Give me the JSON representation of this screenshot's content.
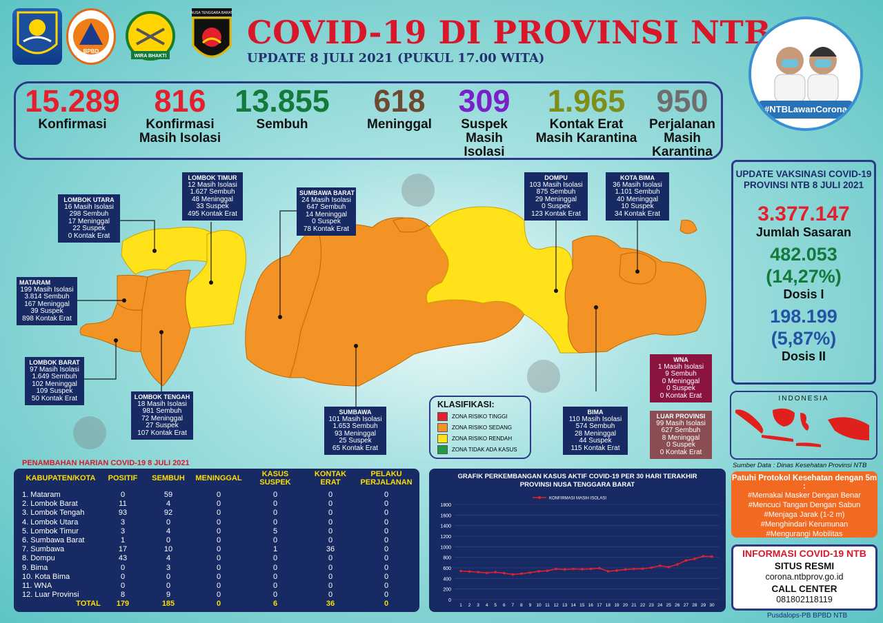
{
  "header": {
    "title": "COVID-19 DI PROVINSI NTB",
    "subtitle": "UPDATE 8 JULI 2021 (PUKUL 17.00 WITA)",
    "logos": [
      {
        "name": "ntb-province-emblem",
        "text": ""
      },
      {
        "name": "bpbd-logo",
        "text": "BPBD"
      },
      {
        "name": "korem-wira-bhakti-logo",
        "text": "WIRA BHAKTI"
      },
      {
        "name": "polda-ntb-logo",
        "text": "NUSA TENGGARA BARAT"
      }
    ]
  },
  "stats": [
    {
      "value": "15.289",
      "label": "Konfirmasi",
      "color": "#e3202d"
    },
    {
      "value": "816",
      "label": "Konfirmasi Masih Isolasi",
      "color": "#e3202d"
    },
    {
      "value": "13.855",
      "label": "Sembuh",
      "color": "#137a3c"
    },
    {
      "value": "618",
      "label": "Meninggal",
      "color": "#6d4a2f"
    },
    {
      "value": "309",
      "label": "Suspek Masih Isolasi",
      "color": "#7b1fc8"
    },
    {
      "value": "1.965",
      "label": "Kontak Erat Masih Karantina",
      "color": "#7f8d19"
    },
    {
      "value": "950",
      "label": "Perjalanan Masih Karantina",
      "color": "#6e6e6e"
    }
  ],
  "badge": {
    "hashtag": "#NTBLawanCorona"
  },
  "vaccination": {
    "title": "UPDATE VAKSINASI COVID-19 PROVINSI NTB 8 JULI 2021",
    "target_value": "3.377.147",
    "target_label": "Jumlah Sasaran",
    "dose1_value": "482.053",
    "dose1_pct": "(14,27%)",
    "dose1_label": "Dosis I",
    "dose2_value": "198.199",
    "dose2_pct": "(5,87%)",
    "dose2_label": "Dosis II"
  },
  "regions": [
    {
      "name": "LOMBOK UTARA",
      "lines": [
        "16 Masih Isolasi",
        "298 Sembuh",
        "17 Meninggal",
        "22 Suspek",
        "0 Kontak Erat"
      ]
    },
    {
      "name": "LOMBOK TIMUR",
      "lines": [
        "12 Masih Isolasi",
        "1.627 Sembuh",
        "48 Meninggal",
        "33 Suspek",
        "495 Kontak Erat"
      ]
    },
    {
      "name": "SUMBAWA BARAT",
      "lines": [
        "24 Masih Isolasi",
        "647 Sembuh",
        "14 Meninggal",
        "0 Suspek",
        "78 Kontak Erat"
      ]
    },
    {
      "name": "DOMPU",
      "lines": [
        "103 Masih Isolasi",
        "875 Sembuh",
        "29 Meninggal",
        "0 Suspek",
        "123 Kontak Erat"
      ]
    },
    {
      "name": "KOTA BIMA",
      "lines": [
        "36 Masih Isolasi",
        "1.101 Sembuh",
        "40 Meninggal",
        "10 Suspek",
        "34 Kontak Erat"
      ]
    },
    {
      "name": "MATARAM",
      "lines": [
        "199 Masih Isolasi",
        "3.814 Sembuh",
        "167 Meninggal",
        "39 Suspek",
        "898 Kontak Erat"
      ]
    },
    {
      "name": "LOMBOK BARAT",
      "lines": [
        "97 Masih Isolasi",
        "1.649 Sembuh",
        "102 Meninggal",
        "109 Suspek",
        "50 Kontak Erat"
      ]
    },
    {
      "name": "LOMBOK TENGAH",
      "lines": [
        "18 Masih Isolasi",
        "981 Sembuh",
        "72 Meninggal",
        "27 Suspek",
        "107 Kontak Erat"
      ]
    },
    {
      "name": "SUMBAWA",
      "lines": [
        "101 Masih Isolasi",
        "1.653 Sembuh",
        "93 Meninggal",
        "25 Suspek",
        "65 Kontak Erat"
      ]
    },
    {
      "name": "BIMA",
      "lines": [
        "110 Masih Isolasi",
        "574 Sembuh",
        "28 Meninggal",
        "44 Suspek",
        "115 Kontak Erat"
      ]
    },
    {
      "name": "WNA",
      "lines": [
        "1 Masih Isolasi",
        "9 Sembuh",
        "0 Meninggal",
        "0 Suspek",
        "0 Kontak Erat"
      ]
    },
    {
      "name": "LUAR PROVINSI",
      "lines": [
        "99 Masih Isolasi",
        "627 Sembuh",
        "8 Meninggal",
        "0 Suspek",
        "0 Kontak Erat"
      ]
    }
  ],
  "legend": {
    "title": "KLASIFIKASI:",
    "items": [
      {
        "label": "ZONA RISIKO TINGGI",
        "color": "#e3202d"
      },
      {
        "label": "ZONA RISIKO SEDANG",
        "color": "#f39325"
      },
      {
        "label": "ZONA RISIKO RENDAH",
        "color": "#ffe21a"
      },
      {
        "label": "ZONA TIDAK ADA KASUS",
        "color": "#1f9a48"
      }
    ]
  },
  "daily": {
    "title": "PENAMBAHAN HARIAN COVID-19 8 JULI 2021",
    "headers": [
      "KABUPATEN/KOTA",
      "POSITIF",
      "SEMBUH",
      "MENINGGAL",
      "KASUS SUSPEK",
      "KONTAK ERAT",
      "PELAKU PERJALANAN"
    ],
    "rows": [
      [
        "1. Mataram",
        "0",
        "59",
        "0",
        "0",
        "0",
        "0"
      ],
      [
        "2. Lombok Barat",
        "11",
        "4",
        "0",
        "0",
        "0",
        "0"
      ],
      [
        "3. Lombok Tengah",
        "93",
        "92",
        "0",
        "0",
        "0",
        "0"
      ],
      [
        "4. Lombok Utara",
        "3",
        "0",
        "0",
        "0",
        "0",
        "0"
      ],
      [
        "5. Lombok Timur",
        "3",
        "4",
        "0",
        "5",
        "0",
        "0"
      ],
      [
        "6. Sumbawa Barat",
        "1",
        "0",
        "0",
        "0",
        "0",
        "0"
      ],
      [
        "7. Sumbawa",
        "17",
        "10",
        "0",
        "1",
        "36",
        "0"
      ],
      [
        "8. Dompu",
        "43",
        "4",
        "0",
        "0",
        "0",
        "0"
      ],
      [
        "9. Bima",
        "0",
        "3",
        "0",
        "0",
        "0",
        "0"
      ],
      [
        "10. Kota Bima",
        "0",
        "0",
        "0",
        "0",
        "0",
        "0"
      ],
      [
        "11. WNA",
        "0",
        "0",
        "0",
        "0",
        "0",
        "0"
      ],
      [
        "12. Luar Provinsi",
        "8",
        "9",
        "0",
        "0",
        "0",
        "0"
      ]
    ],
    "total": [
      "TOTAL",
      "179",
      "185",
      "0",
      "6",
      "36",
      "0"
    ]
  },
  "chart_data": {
    "type": "line",
    "title": "GRAFIK PERKEMBANGAN KASUS AKTIF COVID-19 PER 30 HARI TERAKHIR PROVINSI NUSA TENGGARA BARAT",
    "xlabel": "",
    "ylabel": "",
    "x": [
      1,
      2,
      3,
      4,
      5,
      6,
      7,
      8,
      9,
      10,
      11,
      12,
      13,
      14,
      15,
      16,
      17,
      18,
      19,
      20,
      21,
      22,
      23,
      24,
      25,
      26,
      27,
      28,
      29,
      30
    ],
    "series": [
      {
        "name": "KONFIRMASI MASIH ISOLASI",
        "values": [
          540,
          530,
          520,
          505,
          520,
          500,
          475,
          490,
          510,
          535,
          545,
          580,
          570,
          580,
          575,
          580,
          595,
          535,
          550,
          570,
          580,
          585,
          605,
          640,
          615,
          665,
          740,
          770,
          820,
          815
        ]
      }
    ],
    "ylim": [
      0,
      1800
    ],
    "yticks": [
      0,
      200,
      400,
      600,
      800,
      1000,
      1200,
      1400,
      1600,
      1800
    ],
    "grid": true,
    "legend": "top-left",
    "color": "#e3202d"
  },
  "minimap": {
    "label": "INDONESIA"
  },
  "source": "Sumber Data : Dinas Kesehatan Provinsi NTB",
  "protokol": {
    "title": "Patuhi Protokol Kesehatan dengan 5m :",
    "items": [
      "#Memakai Masker Dengan Benar",
      "#Mencuci Tangan Dengan Sabun",
      "#Menjaga Jarak (1-2 m)",
      "#Menghindari Kerumunan",
      "#Mengurangi Mobilitas"
    ]
  },
  "info": {
    "title": "INFORMASI COVID-19 NTB",
    "site_label": "SITUS RESMI",
    "site": "corona.ntbprov.go.id",
    "cc_label": "CALL CENTER",
    "cc": "081802118119"
  },
  "footer": "Pusdalops-PB BPBD NTB"
}
